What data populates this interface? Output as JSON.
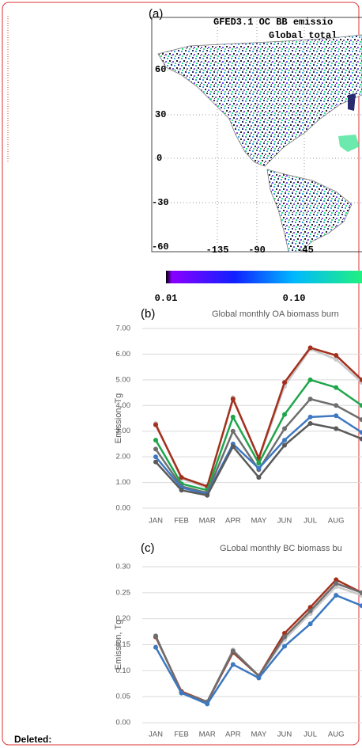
{
  "map": {
    "label": "(a)",
    "title": "GFED3.1 OC BB emissio",
    "subtitle": "Global total",
    "lat_labels": [
      "60",
      "30",
      "0",
      "-30",
      "-60"
    ],
    "lon_labels": [
      "-135",
      "-90",
      "-45"
    ],
    "colorbar_labels": [
      "0.01",
      "0.10"
    ]
  },
  "chart_data": [
    {
      "type": "line",
      "label": "(b)",
      "title": "Global monthly OA biomass burn",
      "y_label": "Emission, Tg",
      "categories": [
        "JAN",
        "FEB",
        "MAR",
        "APR",
        "MAY",
        "JUN",
        "JUL",
        "AUG",
        null
      ],
      "ylim": [
        0,
        7
      ],
      "yticks": [
        {
          "value": 0,
          "label": "0.00"
        },
        {
          "value": 1,
          "label": "1.00"
        },
        {
          "value": 2,
          "label": "2.00"
        },
        {
          "value": 3,
          "label": "3.00"
        },
        {
          "value": 4,
          "label": "4.00"
        },
        {
          "value": 5,
          "label": "5.00"
        },
        {
          "value": 6,
          "label": "6.00"
        },
        {
          "value": 7,
          "label": "7.00"
        }
      ],
      "grid": true,
      "series": [
        {
          "color": "#c8c8c8",
          "values": [
            3.3,
            1.15,
            0.8,
            4.3,
            1.9,
            4.75,
            6.2,
            5.8,
            4.9
          ]
        },
        {
          "color": "#a3301d",
          "values": [
            3.25,
            1.2,
            0.85,
            4.25,
            1.95,
            4.9,
            6.25,
            5.95,
            5.0
          ]
        },
        {
          "color": "#1ea64b",
          "values": [
            2.65,
            0.95,
            0.7,
            3.55,
            1.75,
            3.65,
            5.0,
            4.7,
            4.0
          ]
        },
        {
          "color": "#6e6e6e",
          "values": [
            2.3,
            0.85,
            0.6,
            3.0,
            1.5,
            3.1,
            4.25,
            4.0,
            3.45
          ]
        },
        {
          "color": "#3d78c0",
          "values": [
            2.0,
            0.8,
            0.55,
            2.5,
            1.55,
            2.65,
            3.55,
            3.6,
            2.95
          ]
        },
        {
          "color": "#5a5a5a",
          "values": [
            1.8,
            0.7,
            0.5,
            2.4,
            1.2,
            2.45,
            3.3,
            3.1,
            2.7
          ]
        }
      ]
    },
    {
      "type": "line",
      "label": "(c)",
      "title": "GLobal monthly BC biomass bu",
      "y_label": "Emission, Tg",
      "categories": [
        "JAN",
        "FEB",
        "MAR",
        "APR",
        "MAY",
        "JUN",
        "JUL",
        "AUG",
        null
      ],
      "ylim": [
        0,
        0.3
      ],
      "yticks": [
        {
          "value": 0,
          "label": "0.00"
        },
        0.05,
        {
          "value": 0.1,
          "label": "0.10"
        },
        0.15,
        {
          "value": 0.2,
          "label": "0.20"
        },
        0.25,
        {
          "value": 0.3,
          "label": "0.30"
        }
      ],
      "grid": true,
      "series": [
        {
          "color": "#c8c8c8",
          "values": [
            0.165,
            0.06,
            0.04,
            0.14,
            0.09,
            0.16,
            0.21,
            0.262,
            0.245
          ]
        },
        {
          "color": "#a3301d",
          "values": [
            0.165,
            0.06,
            0.04,
            0.135,
            0.09,
            0.172,
            0.222,
            0.275,
            0.25
          ]
        },
        {
          "color": "#6e6e6e",
          "values": [
            0.167,
            0.058,
            0.04,
            0.138,
            0.09,
            0.165,
            0.215,
            0.268,
            0.25
          ]
        },
        {
          "color": "#3d78c0",
          "values": [
            0.145,
            0.057,
            0.036,
            0.112,
            0.086,
            0.147,
            0.19,
            0.245,
            0.225
          ]
        }
      ]
    }
  ],
  "note": "Deleted:"
}
